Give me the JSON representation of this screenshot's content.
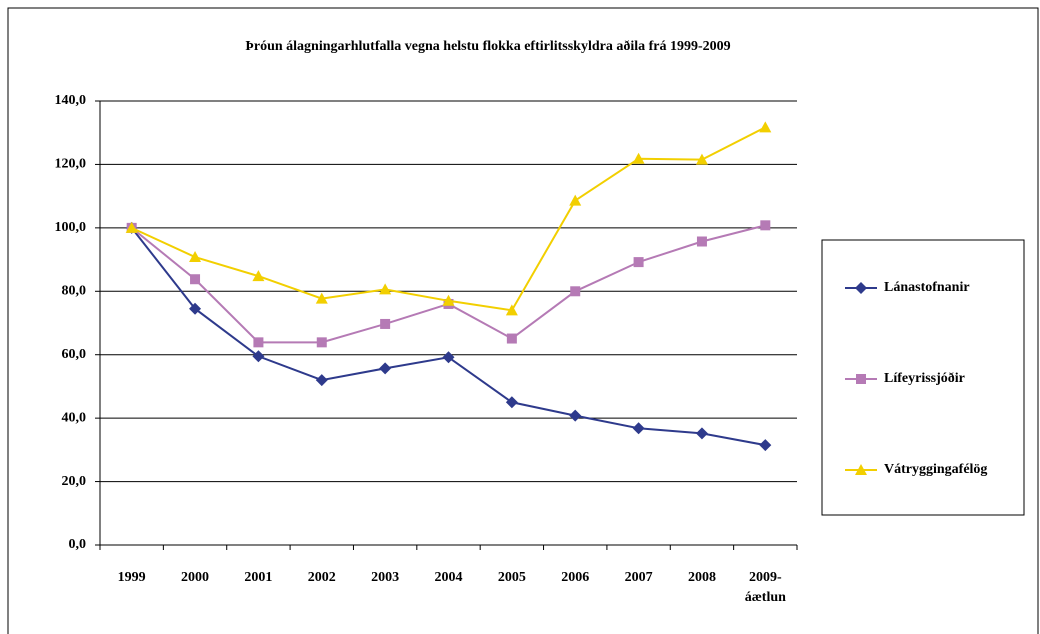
{
  "chart_data": {
    "type": "line",
    "title": "Þróun álagningarhlutfalla vegna helstu flokka eftirlitsskyldra aðila frá 1999-2009",
    "categories": [
      "1999",
      "2000",
      "2001",
      "2002",
      "2003",
      "2004",
      "2005",
      "2006",
      "2007",
      "2008",
      "2009-\náætlun"
    ],
    "series": [
      {
        "name": "Lánastofnanir",
        "color": "#2e3a8c",
        "marker": "diamond",
        "values": [
          100,
          74.5,
          59.5,
          52,
          55.7,
          59.2,
          45,
          40.8,
          36.8,
          35.2,
          31.5
        ]
      },
      {
        "name": "Lífeyrissjóðir",
        "color": "#b57ab5",
        "marker": "square",
        "values": [
          100,
          83.8,
          63.9,
          63.9,
          69.7,
          76,
          65.1,
          80,
          89.2,
          95.7,
          100.8
        ]
      },
      {
        "name": "Vátryggingafélög",
        "color": "#f2cf00",
        "marker": "triangle",
        "values": [
          100,
          90.8,
          84.8,
          77.7,
          80.6,
          77,
          74,
          108.6,
          121.8,
          121.5,
          131.7
        ]
      }
    ],
    "ylim": [
      0,
      140
    ],
    "yticks": [
      {
        "value": 0,
        "label": "0,0"
      },
      {
        "value": 20,
        "label": "20,0"
      },
      {
        "value": 40,
        "label": "40,0"
      },
      {
        "value": 60,
        "label": "60,0"
      },
      {
        "value": 80,
        "label": "80,0"
      },
      {
        "value": 100,
        "label": "100,0"
      },
      {
        "value": 120,
        "label": "120,0"
      },
      {
        "value": 140,
        "label": "140,0"
      }
    ],
    "grid": true,
    "legend": "right"
  }
}
